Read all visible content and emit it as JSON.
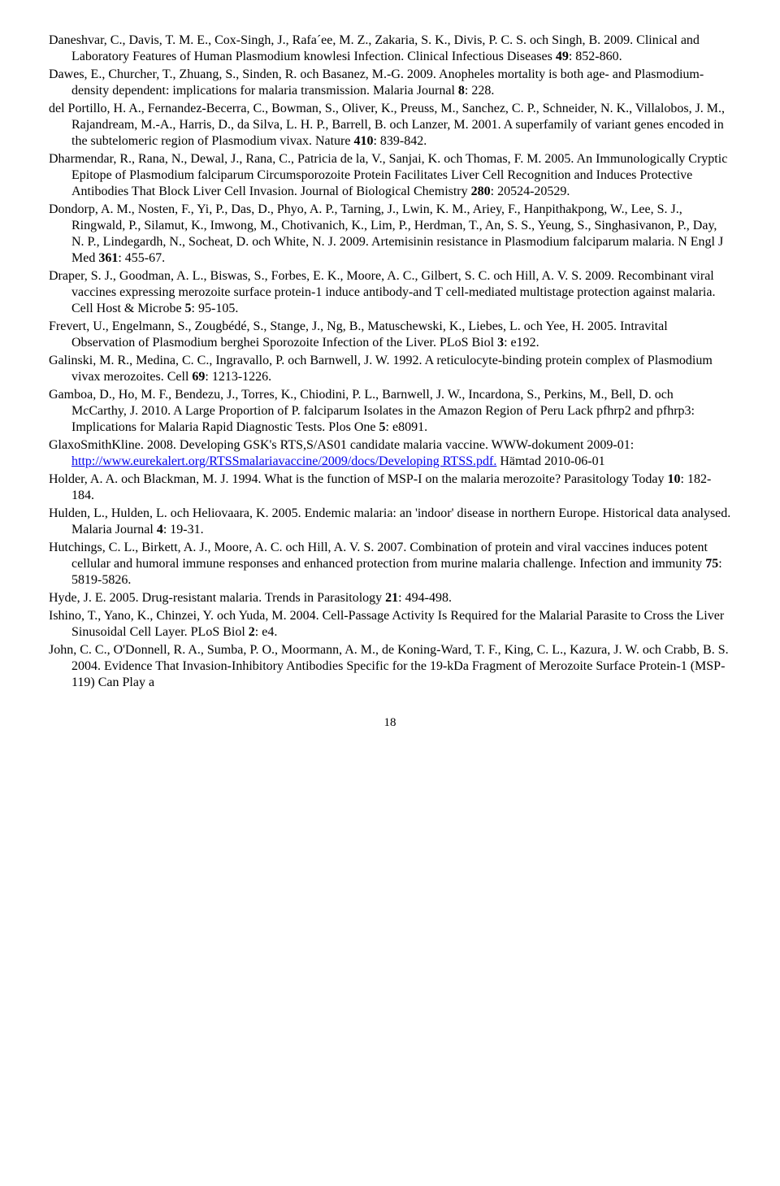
{
  "refs": [
    {
      "html": "Daneshvar, C., Davis, T. M. E., Cox-Singh, J., Rafa´ee, M. Z., Zakaria, S. K., Divis, P. C. S. och Singh, B. 2009. Clinical and Laboratory Features of Human Plasmodium knowlesi Infection. Clinical Infectious Diseases <span class=\"b\">49</span>: 852-860."
    },
    {
      "html": "Dawes, E., Churcher, T., Zhuang, S., Sinden, R. och Basanez, M.-G. 2009. Anopheles mortality is both age- and Plasmodium-density dependent: implications for malaria transmission. Malaria Journal <span class=\"b\">8</span>: 228."
    },
    {
      "html": "del Portillo, H. A., Fernandez-Becerra, C., Bowman, S., Oliver, K., Preuss, M., Sanchez, C. P., Schneider, N. K., Villalobos, J. M., Rajandream, M.-A., Harris, D., da Silva, L. H. P., Barrell, B. och Lanzer, M. 2001. A superfamily of variant genes encoded in the subtelomeric region of Plasmodium vivax. Nature <span class=\"b\">410</span>: 839-842."
    },
    {
      "html": "Dharmendar, R., Rana, N., Dewal, J., Rana, C., Patricia de la, V., Sanjai, K. och Thomas, F. M. 2005. An Immunologically Cryptic Epitope of Plasmodium falciparum Circumsporozoite Protein Facilitates Liver Cell Recognition and Induces Protective Antibodies That Block Liver Cell Invasion. Journal of Biological Chemistry <span class=\"b\">280</span>: 20524-20529."
    },
    {
      "html": "Dondorp, A. M., Nosten, F., Yi, P., Das, D., Phyo, A. P., Tarning, J., Lwin, K. M., Ariey, F., Hanpithakpong, W., Lee, S. J., Ringwald, P., Silamut, K., Imwong, M., Chotivanich, K., Lim, P., Herdman, T., An, S. S., Yeung, S., Singhasivanon, P., Day, N. P., Lindegardh, N., Socheat, D. och White, N. J. 2009. Artemisinin resistance in Plasmodium falciparum malaria. N Engl J Med <span class=\"b\">361</span>: 455-67."
    },
    {
      "html": "Draper, S. J., Goodman, A. L., Biswas, S., Forbes, E. K., Moore, A. C., Gilbert, S. C. och Hill, A. V. S. 2009. Recombinant viral vaccines expressing merozoite surface protein-1 induce antibody-and T cell-mediated multistage protection against malaria. Cell Host &amp; Microbe <span class=\"b\">5</span>: 95-105."
    },
    {
      "html": "Frevert, U., Engelmann, S., Zougbédé, S., Stange, J., Ng, B., Matuschewski, K., Liebes, L. och Yee, H. 2005. Intravital Observation of Plasmodium berghei Sporozoite Infection of the Liver. PLoS Biol <span class=\"b\">3</span>: e192."
    },
    {
      "html": "Galinski, M. R., Medina, C. C., Ingravallo, P. och Barnwell, J. W. 1992. A reticulocyte-binding protein complex of Plasmodium vivax merozoites. Cell <span class=\"b\">69</span>: 1213-1226."
    },
    {
      "html": "Gamboa, D., Ho, M. F., Bendezu, J., Torres, K., Chiodini, P. L., Barnwell, J. W., Incardona, S., Perkins, M., Bell, D. och McCarthy, J. 2010. A Large Proportion of P. falciparum Isolates in the Amazon Region of Peru Lack pfhrp2 and pfhrp3: Implications for Malaria Rapid Diagnostic Tests. Plos One <span class=\"b\">5</span>: e8091."
    },
    {
      "html": "GlaxoSmithKline. 2008. Developing GSK's RTS,S/AS01 candidate malaria vaccine. WWW-dokument 2009-01: <a href=\"#\">http://www.eurekalert.org/RTSSmalariavaccine/2009/docs/Developing RTSS.pdf.</a> Hämtad 2010-06-01"
    },
    {
      "html": "Holder, A. A. och Blackman, M. J. 1994. What is the function of MSP-I on the malaria merozoite? Parasitology Today <span class=\"b\">10</span>: 182-184."
    },
    {
      "html": "Hulden, L., Hulden, L. och Heliovaara, K. 2005. Endemic malaria: an 'indoor' disease in northern Europe. Historical data analysed. Malaria Journal <span class=\"b\">4</span>: 19-31."
    },
    {
      "html": "Hutchings, C. L., Birkett, A. J., Moore, A. C. och Hill, A. V. S. 2007. Combination of protein and viral vaccines induces potent cellular and humoral immune responses and enhanced protection from murine malaria challenge. Infection and immunity <span class=\"b\">75</span>: 5819-5826."
    },
    {
      "html": "Hyde, J. E. 2005. Drug-resistant malaria. Trends in Parasitology <span class=\"b\">21</span>: 494-498."
    },
    {
      "html": "Ishino, T., Yano, K., Chinzei, Y. och Yuda, M. 2004. Cell-Passage Activity Is Required for the Malarial Parasite to Cross the Liver Sinusoidal Cell Layer. PLoS Biol <span class=\"b\">2</span>: e4."
    },
    {
      "html": "John, C. C., O'Donnell, R. A., Sumba, P. O., Moormann, A. M., de Koning-Ward, T. F., King, C. L., Kazura, J. W. och Crabb, B. S. 2004. Evidence That Invasion-Inhibitory Antibodies Specific for the 19-kDa Fragment of Merozoite Surface Protein-1 (MSP-119) Can Play a"
    }
  ],
  "pageNumber": "18"
}
